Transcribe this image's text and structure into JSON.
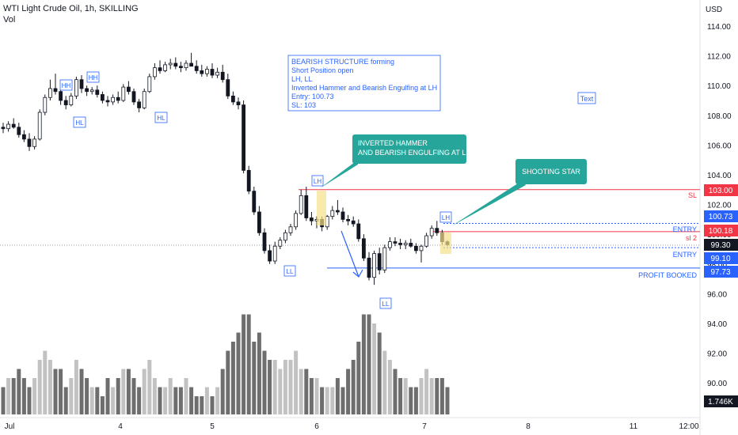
{
  "header": {
    "symbol_line": "WTI Light Crude Oil, 1h, SKILLING",
    "volume_label": "Vol"
  },
  "price_axis": {
    "currency": "USD",
    "ticks": [
      "114.00",
      "112.00",
      "110.00",
      "108.00",
      "106.00",
      "104.00",
      "102.00",
      "100.00",
      "98.00",
      "96.00",
      "94.00",
      "92.00",
      "90.00"
    ]
  },
  "time_axis": {
    "ticks": [
      "Jul",
      "4",
      "5",
      "6",
      "7",
      "8",
      "11",
      "12:00"
    ]
  },
  "price_labels": {
    "sl": "103.00",
    "lh_entry": "100.73",
    "entry_sl2": "100.18",
    "last_price": "99.30",
    "entry": "99.10",
    "profit": "97.73",
    "volume": "1.746K"
  },
  "line_labels": {
    "sl": "SL",
    "entry_top": "ENTRY",
    "sl2": "sl 2",
    "entry_bottom": "ENTRY",
    "profit": "PROFIT BOOKED"
  },
  "note_box": {
    "lines": [
      "BEARISH STRUCTURE forming",
      "Short Position open",
      "LH, LL",
      "Inverted Hammer and Bearish Engulfing at LH",
      "Entry: 100.73",
      "SL: 103"
    ]
  },
  "callouts": {
    "inverted_hammer": [
      "INVERTED HAMMER",
      "AND BEARISH ENGULFING AT LH"
    ],
    "shooting_star": "SHOOTING STAR"
  },
  "text_tag": "Text",
  "structure_tags": {
    "hh1": "HH",
    "hh2": "HH",
    "hl1": "HL",
    "hl2": "HL",
    "lh1": "LH",
    "ll1": "LL",
    "ll2": "LL",
    "lh2": "LH"
  },
  "colors": {
    "up": "#ffffff",
    "down": "#131722",
    "wick": "#131722",
    "volume_up": "#c2c2c2",
    "volume_down": "#6e6e6e",
    "sl_line": "#f23645",
    "entry_line": "#2962ff",
    "teal_callout": "#26a69a",
    "highlight": "#f5e08a",
    "axis_text": "#131722",
    "label_red": "#f23645",
    "label_blue": "#2962ff",
    "label_black": "#131722"
  },
  "chart_data": {
    "type": "candlestick",
    "symbol": "WTI Light Crude Oil",
    "interval": "1h",
    "y_range": [
      89,
      115.5
    ],
    "ohlc": [
      [
        107.2,
        107.5,
        106.8,
        107.1
      ],
      [
        107.1,
        107.6,
        106.9,
        107.4
      ],
      [
        107.4,
        107.8,
        107.1,
        107.2
      ],
      [
        107.2,
        107.5,
        106.5,
        106.7
      ],
      [
        106.7,
        107.0,
        106.2,
        106.4
      ],
      [
        106.4,
        106.8,
        105.6,
        105.9
      ],
      [
        105.9,
        106.6,
        105.7,
        106.4
      ],
      [
        106.4,
        108.4,
        106.3,
        108.2
      ],
      [
        108.2,
        109.4,
        108.0,
        109.2
      ],
      [
        109.2,
        110.4,
        109.0,
        109.8
      ],
      [
        109.8,
        110.8,
        109.4,
        109.6
      ],
      [
        109.6,
        110.0,
        108.7,
        109.0
      ],
      [
        109.0,
        109.3,
        108.4,
        108.7
      ],
      [
        108.7,
        109.5,
        108.6,
        109.3
      ],
      [
        109.3,
        110.6,
        109.1,
        110.4
      ],
      [
        110.4,
        110.7,
        109.5,
        109.8
      ],
      [
        109.8,
        110.0,
        109.3,
        109.6
      ],
      [
        109.6,
        109.9,
        109.4,
        109.7
      ],
      [
        109.7,
        110.0,
        109.2,
        109.4
      ],
      [
        109.4,
        109.6,
        108.8,
        109.0
      ],
      [
        109.0,
        109.3,
        108.6,
        108.9
      ],
      [
        108.9,
        109.4,
        108.7,
        109.2
      ],
      [
        109.2,
        109.6,
        108.8,
        109.0
      ],
      [
        109.0,
        110.1,
        108.9,
        109.9
      ],
      [
        109.9,
        110.3,
        109.4,
        109.6
      ],
      [
        109.6,
        109.8,
        108.7,
        108.9
      ],
      [
        108.9,
        109.1,
        108.2,
        108.5
      ],
      [
        108.5,
        109.8,
        108.4,
        109.6
      ],
      [
        109.6,
        110.8,
        109.5,
        110.6
      ],
      [
        110.6,
        111.5,
        110.4,
        111.2
      ],
      [
        111.2,
        111.7,
        110.8,
        111.0
      ],
      [
        111.0,
        111.6,
        110.9,
        111.4
      ],
      [
        111.4,
        111.8,
        111.1,
        111.5
      ],
      [
        111.5,
        111.9,
        111.1,
        111.3
      ],
      [
        111.3,
        111.6,
        110.9,
        111.2
      ],
      [
        111.2,
        111.7,
        111.0,
        111.5
      ],
      [
        111.5,
        112.2,
        111.3,
        111.3
      ],
      [
        111.3,
        111.7,
        110.8,
        111.0
      ],
      [
        111.0,
        111.4,
        110.6,
        110.8
      ],
      [
        110.8,
        111.3,
        110.6,
        111.1
      ],
      [
        111.1,
        111.5,
        110.5,
        110.7
      ],
      [
        110.7,
        111.2,
        110.5,
        110.9
      ],
      [
        110.9,
        111.4,
        110.2,
        110.4
      ],
      [
        110.4,
        110.8,
        109.1,
        109.3
      ],
      [
        109.3,
        109.6,
        108.7,
        108.9
      ],
      [
        108.9,
        109.2,
        108.4,
        108.7
      ],
      [
        108.7,
        109.0,
        104.1,
        104.3
      ],
      [
        104.3,
        104.6,
        102.7,
        102.9
      ],
      [
        102.9,
        103.2,
        101.3,
        101.5
      ],
      [
        101.5,
        101.9,
        99.9,
        100.1
      ],
      [
        100.1,
        100.4,
        98.7,
        98.9
      ],
      [
        98.9,
        99.3,
        98.0,
        98.2
      ],
      [
        98.2,
        99.5,
        98.0,
        99.2
      ],
      [
        99.2,
        99.8,
        99.0,
        99.6
      ],
      [
        99.6,
        100.3,
        99.4,
        100.1
      ],
      [
        100.1,
        100.7,
        99.9,
        100.5
      ],
      [
        100.5,
        101.6,
        100.3,
        101.4
      ],
      [
        101.4,
        103.0,
        101.3,
        102.6
      ],
      [
        102.6,
        103.2,
        100.9,
        101.1
      ],
      [
        101.1,
        101.5,
        100.6,
        100.9
      ],
      [
        100.9,
        101.2,
        100.4,
        101.0
      ],
      [
        101.0,
        101.2,
        100.2,
        100.5
      ],
      [
        100.5,
        101.3,
        100.3,
        101.2
      ],
      [
        101.2,
        101.9,
        101.0,
        101.6
      ],
      [
        101.6,
        102.3,
        101.3,
        101.5
      ],
      [
        101.5,
        101.8,
        100.8,
        101.0
      ],
      [
        101.0,
        101.3,
        100.6,
        100.9
      ],
      [
        100.9,
        101.2,
        100.5,
        100.7
      ],
      [
        100.7,
        101.0,
        99.5,
        99.7
      ],
      [
        99.7,
        100.0,
        98.2,
        98.4
      ],
      [
        98.4,
        98.8,
        96.9,
        97.1
      ],
      [
        97.1,
        98.9,
        96.6,
        98.7
      ],
      [
        98.7,
        99.1,
        97.3,
        97.6
      ],
      [
        97.6,
        99.3,
        97.4,
        99.1
      ],
      [
        99.1,
        99.8,
        98.9,
        99.5
      ],
      [
        99.5,
        99.8,
        99.2,
        99.4
      ],
      [
        99.4,
        99.7,
        99.0,
        99.3
      ],
      [
        99.3,
        99.6,
        99.0,
        99.4
      ],
      [
        99.4,
        99.7,
        99.1,
        99.2
      ],
      [
        99.2,
        99.4,
        98.7,
        98.9
      ],
      [
        98.9,
        99.3,
        98.1,
        99.2
      ],
      [
        99.2,
        100.1,
        99.1,
        99.9
      ],
      [
        99.9,
        100.6,
        99.7,
        100.4
      ],
      [
        100.4,
        100.9,
        99.9,
        100.1
      ],
      [
        100.1,
        100.3,
        99.3,
        99.5
      ],
      [
        99.5,
        99.6,
        99.2,
        99.3
      ]
    ],
    "volume": [
      3,
      4,
      4,
      5,
      4,
      3,
      4,
      6,
      7,
      6,
      5,
      5,
      3,
      4,
      6,
      5,
      4,
      3,
      3,
      2,
      4,
      3,
      4,
      5,
      5,
      4,
      3,
      5,
      6,
      4,
      3,
      3,
      4,
      3,
      3,
      4,
      3,
      2,
      2,
      3,
      2,
      3,
      5,
      7,
      8,
      9,
      11,
      11,
      8,
      9,
      7,
      6,
      6,
      5,
      6,
      6,
      7,
      5,
      5,
      4,
      4,
      3,
      3,
      3,
      4,
      3,
      5,
      6,
      8,
      11,
      11,
      10,
      9,
      7,
      6,
      5,
      4,
      4,
      3,
      3,
      4,
      5,
      4,
      4,
      4,
      3
    ],
    "levels": [
      {
        "name": "SL",
        "value": 103.0
      },
      {
        "name": "ENTRY",
        "value": 100.73
      },
      {
        "name": "sl 2",
        "value": 100.18
      },
      {
        "name": "ENTRY",
        "value": 99.1
      },
      {
        "name": "PROFIT BOOKED",
        "value": 97.73
      }
    ],
    "last_price": 99.3
  }
}
